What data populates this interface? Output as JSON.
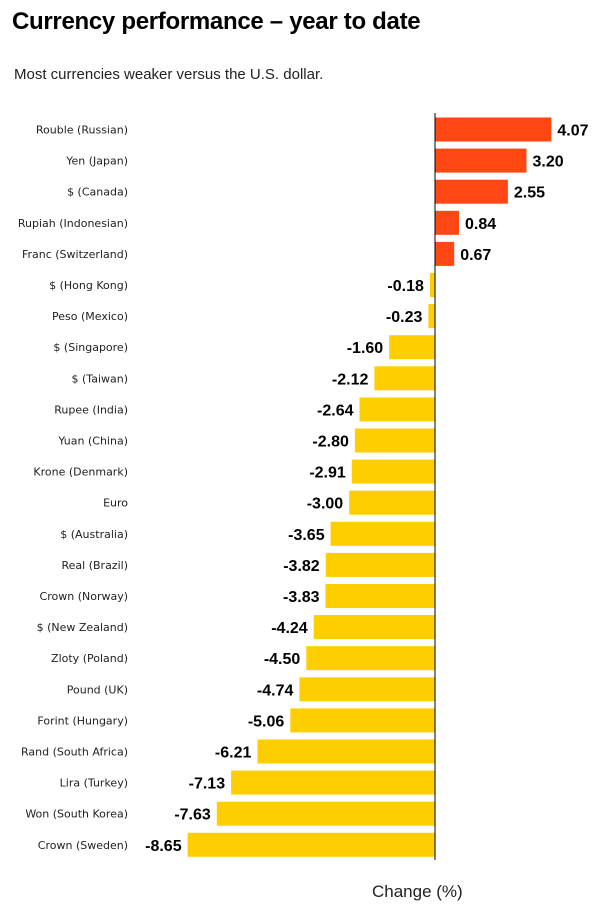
{
  "title": "Currency performance – year to date",
  "subtitle": "Most currencies weaker versus the U.S. dollar.",
  "chart_data": {
    "type": "bar",
    "orientation": "horizontal",
    "title": "Currency performance – year to date",
    "subtitle": "Most currencies weaker versus the U.S. dollar.",
    "xlabel": "Change (%)",
    "ylabel": "",
    "categories": [
      "Rouble (Russian)",
      "Yen (Japan)",
      "$ (Canada)",
      "Rupiah (Indonesian)",
      "Franc (Switzerland)",
      "$ (Hong Kong)",
      "Peso (Mexico)",
      "$ (Singapore)",
      "$ (Taiwan)",
      "Rupee (India)",
      "Yuan (China)",
      "Krone (Denmark)",
      "Euro",
      "$ (Australia)",
      "Real (Brazil)",
      "Crown (Norway)",
      "$ (New Zealand)",
      "Zloty (Poland)",
      "Pound (UK)",
      "Forint (Hungary)",
      "Rand (South Africa)",
      "Lira (Turkey)",
      "Won (South Korea)",
      "Crown (Sweden)"
    ],
    "values": [
      4.07,
      3.2,
      2.55,
      0.84,
      0.67,
      -0.18,
      -0.23,
      -1.6,
      -2.12,
      -2.64,
      -2.8,
      -2.91,
      -3.0,
      -3.65,
      -3.82,
      -3.83,
      -4.24,
      -4.5,
      -4.74,
      -5.06,
      -6.21,
      -7.13,
      -7.63,
      -8.65
    ],
    "value_labels": [
      "4.07",
      "3.20",
      "2.55",
      "0.84",
      "0.67",
      "-0.18",
      "-0.23",
      "-1.60",
      "-2.12",
      "-2.64",
      "-2.80",
      "-2.91",
      "-3.00",
      "-3.65",
      "-3.82",
      "-3.83",
      "-4.24",
      "-4.50",
      "-4.74",
      "-5.06",
      "-6.21",
      "-7.13",
      "-7.63",
      "-8.65"
    ],
    "colors": {
      "positive": "#ff4713",
      "negative": "#ffce00",
      "axis": "#000000"
    },
    "grid": false,
    "legend": "none"
  }
}
